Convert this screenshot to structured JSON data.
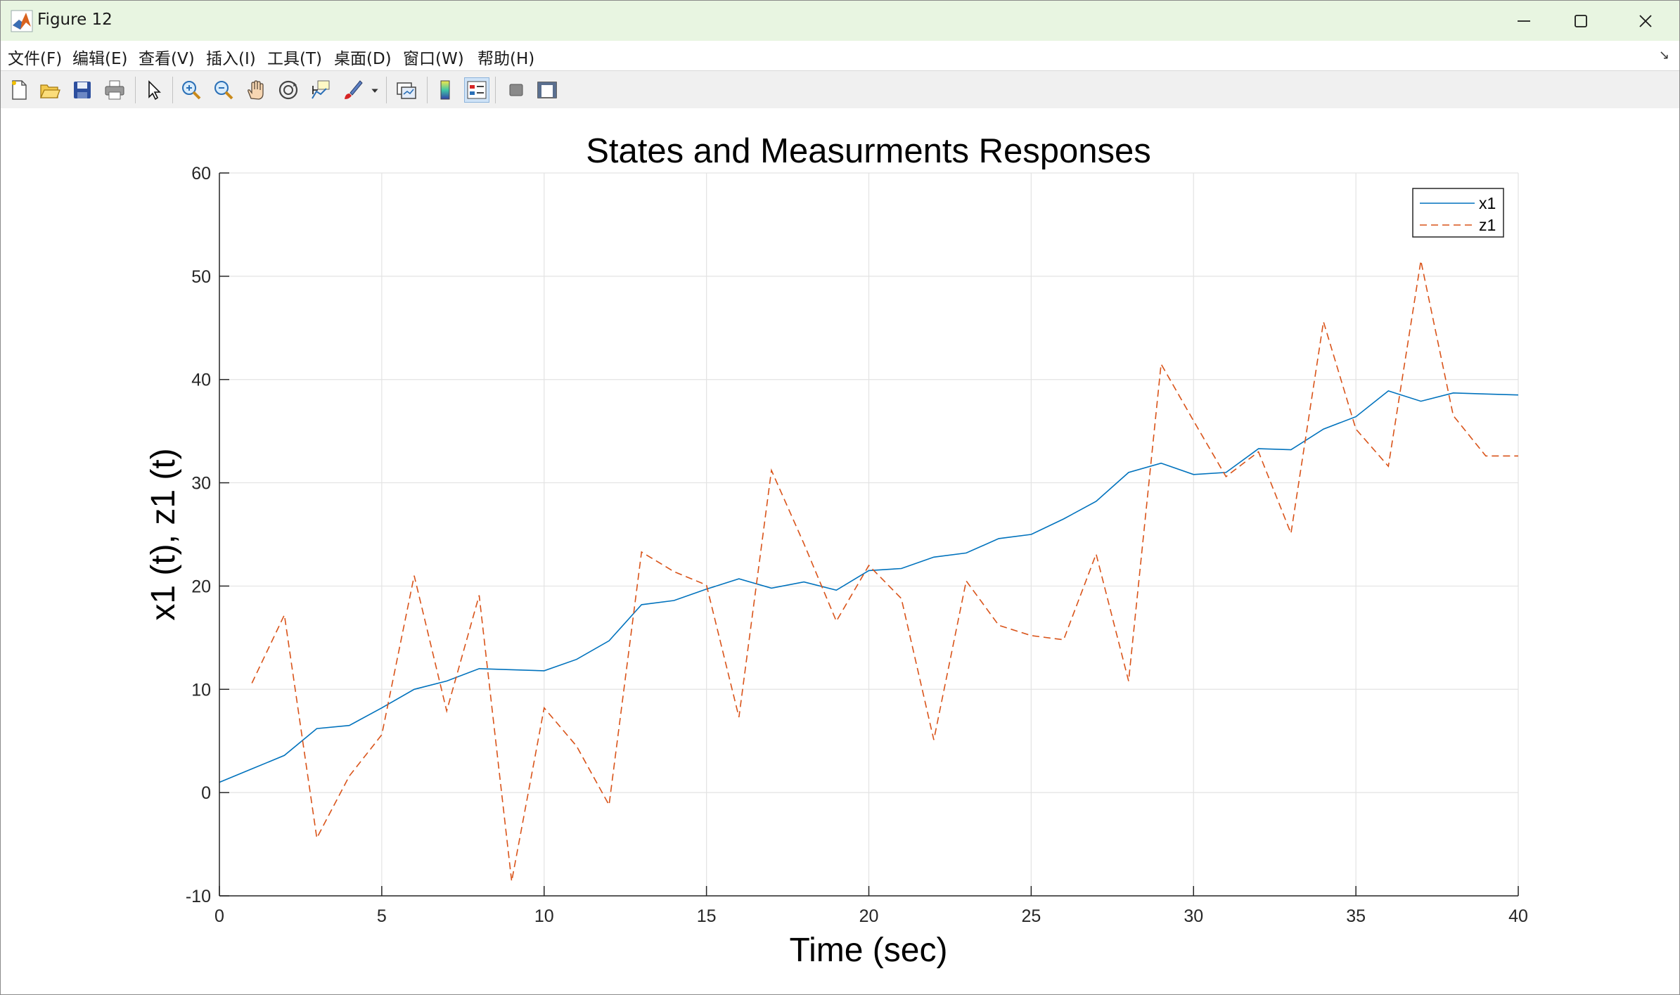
{
  "window": {
    "title": "Figure 12",
    "controls": [
      "minimize-icon",
      "maximize-icon",
      "close-icon"
    ]
  },
  "menu": {
    "items": [
      "文件(F)",
      "编辑(E)",
      "查看(V)",
      "插入(I)",
      "工具(T)",
      "桌面(D)",
      "窗口(W)",
      "帮助(H)"
    ]
  },
  "toolbar": {
    "icons": [
      "new-figure-icon",
      "open-file-icon",
      "save-icon",
      "print-icon",
      "select-arrow-icon",
      "zoom-in-icon",
      "zoom-out-icon",
      "pan-hand-icon",
      "rotate-3d-icon",
      "data-cursor-icon",
      "brush-icon",
      "brush-dropdown-icon",
      "link-plot-icon",
      "colorbar-icon",
      "legend-icon",
      "hide-plot-tools-icon",
      "show-plot-tools-icon"
    ]
  },
  "colors": {
    "x1": "#0072bd",
    "z1": "#d95319",
    "titlebar": "#e8f5e1",
    "toolbar": "#f0f0f0"
  },
  "chart_data": {
    "type": "line",
    "title": "States and Measurments Responses",
    "xlabel": "Time (sec)",
    "ylabel": "x1 (t), z1 (t)",
    "xlim": [
      0,
      40
    ],
    "ylim": [
      -10,
      60
    ],
    "xticks": [
      0,
      5,
      10,
      15,
      20,
      25,
      30,
      35,
      40
    ],
    "yticks": [
      -10,
      0,
      10,
      20,
      30,
      40,
      50,
      60
    ],
    "grid": true,
    "legend_position": "top-right",
    "series": [
      {
        "name": "x1",
        "style": "solid",
        "x": [
          0,
          1,
          2,
          3,
          4,
          5,
          6,
          7,
          8,
          9,
          10,
          11,
          12,
          13,
          14,
          15,
          16,
          17,
          18,
          19,
          20,
          21,
          22,
          23,
          24,
          25,
          26,
          27,
          28,
          29,
          30,
          31,
          32,
          33,
          34,
          35,
          36,
          37,
          38,
          39,
          40
        ],
        "y": [
          1.0,
          2.3,
          3.6,
          6.2,
          6.5,
          8.2,
          10.0,
          10.8,
          12.0,
          11.9,
          11.8,
          12.9,
          14.7,
          18.2,
          18.6,
          19.7,
          20.7,
          19.8,
          20.4,
          19.6,
          21.5,
          21.7,
          22.8,
          23.2,
          24.6,
          25.0,
          26.5,
          28.2,
          31.0,
          31.9,
          30.8,
          31.0,
          33.3,
          33.2,
          35.2,
          36.4,
          38.9,
          37.9,
          38.7,
          38.6,
          38.5
        ]
      },
      {
        "name": "z1",
        "style": "dashed",
        "x": [
          1,
          2,
          3,
          4,
          5,
          6,
          7,
          8,
          9,
          10,
          11,
          12,
          13,
          14,
          15,
          16,
          17,
          18,
          19,
          20,
          21,
          22,
          23,
          24,
          25,
          26,
          27,
          28,
          29,
          30,
          31,
          32,
          33,
          34,
          35,
          36,
          37,
          38,
          39,
          40
        ],
        "y": [
          10.6,
          17.2,
          -4.4,
          1.6,
          5.6,
          21.0,
          7.9,
          19.1,
          -8.6,
          8.2,
          4.5,
          -1.2,
          23.3,
          21.4,
          20.1,
          7.3,
          31.2,
          24.1,
          16.6,
          22.0,
          18.8,
          5.1,
          20.5,
          16.2,
          15.2,
          14.8,
          23.1,
          10.8,
          41.5,
          36.0,
          30.6,
          33.0,
          25.1,
          45.6,
          35.2,
          31.6,
          51.5,
          36.5,
          32.6,
          32.6
        ]
      }
    ]
  }
}
